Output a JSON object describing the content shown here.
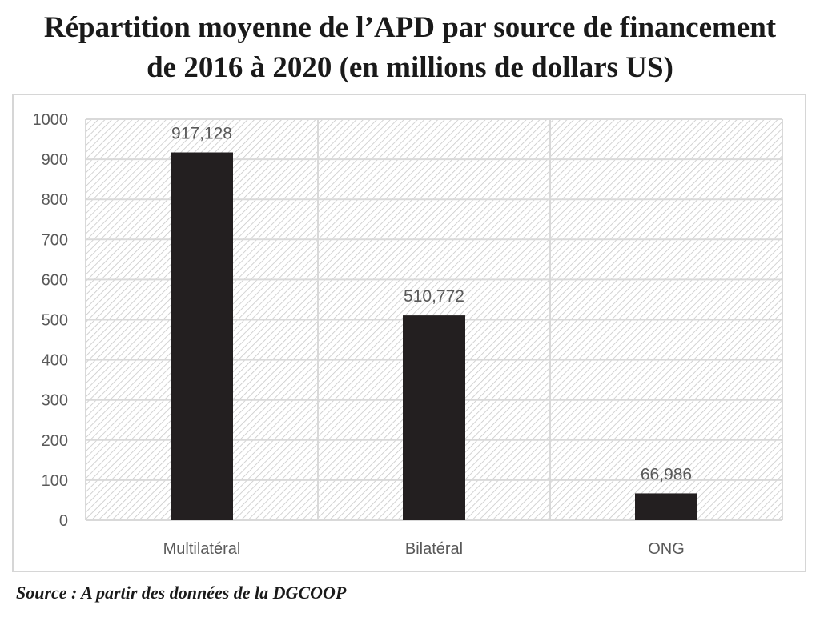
{
  "title": {
    "line1": "Répartition moyenne de l’APD par source de financement",
    "line2": "de 2016 à 2020 (en millions de dollars US)"
  },
  "source": "Source : A partir des données de la DGCOOP",
  "colors": {
    "bar": "#231f20",
    "grid": "#d9d9d9",
    "hatch": "#c8c8c8",
    "text": "#595959"
  },
  "chart_data": {
    "type": "bar",
    "categories": [
      "Multilatéral",
      "Bilatéral",
      "ONG"
    ],
    "values": [
      917.128,
      510.772,
      66.986
    ],
    "value_labels": [
      "917,128",
      "510,772",
      "66,986"
    ],
    "ylim": [
      0,
      1000
    ],
    "yticks": [
      0,
      100,
      200,
      300,
      400,
      500,
      600,
      700,
      800,
      900,
      1000
    ],
    "grid": true,
    "plot_background": "diagonal-hatch"
  }
}
